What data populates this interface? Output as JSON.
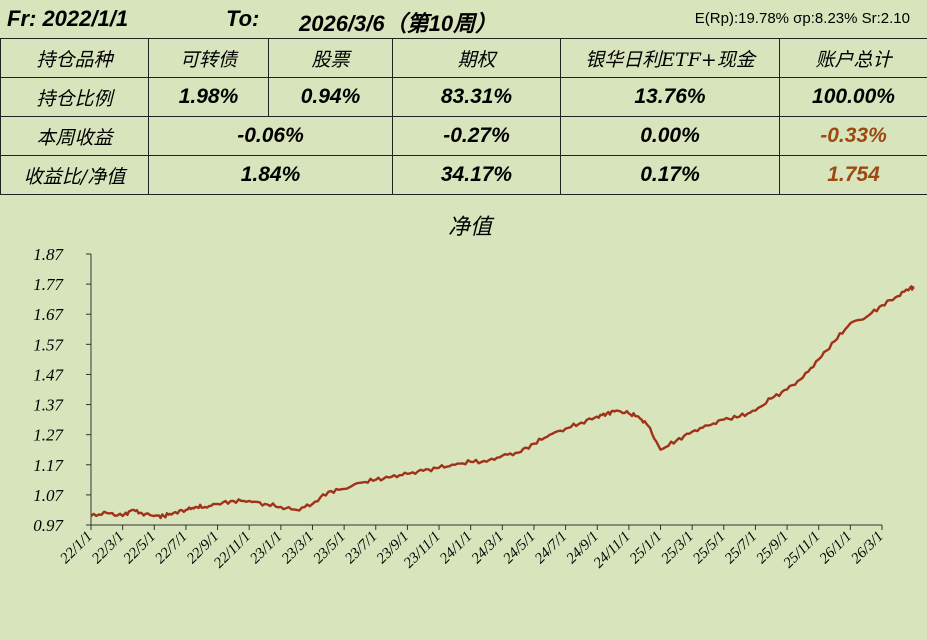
{
  "header": {
    "from_label": "Fr: 2022/1/1",
    "to_label": "To:",
    "to_value": "2026/3/6（第10周）",
    "stats": "E(Rp):19.78%  σp:8.23%  Sr:2.10"
  },
  "table": {
    "headers": [
      "持仓品种",
      "可转债",
      "股票",
      "期权",
      "银华日利ETF+现金",
      "账户总计"
    ],
    "row_position": {
      "label": "持仓比例",
      "values": [
        "1.98%",
        "0.94%",
        "83.31%",
        "13.76%",
        "100.00%"
      ]
    },
    "row_weekly": {
      "label": "本周收益",
      "values": [
        "-0.06%",
        "-0.27%",
        "0.00%",
        "-0.33%"
      ]
    },
    "row_ratio": {
      "label": "收益比/净值",
      "values": [
        "1.84%",
        "34.17%",
        "0.17%",
        "1.754"
      ]
    },
    "highlight_color": "#9c4a12"
  },
  "chart_data": {
    "type": "line",
    "title": "净值",
    "xlabel": "",
    "ylabel": "",
    "ylim": [
      0.97,
      1.87
    ],
    "yticks": [
      "1.87",
      "1.77",
      "1.67",
      "1.57",
      "1.47",
      "1.37",
      "1.27",
      "1.17",
      "1.07",
      "0.97"
    ],
    "x_tick_labels": [
      "22/1/1",
      "22/3/1",
      "22/5/1",
      "22/7/1",
      "22/9/1",
      "22/11/1",
      "23/1/1",
      "23/3/1",
      "23/5/1",
      "23/7/1",
      "23/9/1",
      "23/11/1",
      "24/1/1",
      "24/3/1",
      "24/5/1",
      "24/7/1",
      "24/9/1",
      "24/11/1",
      "25/1/1",
      "25/3/1",
      "25/5/1",
      "25/7/1",
      "25/9/1",
      "25/11/1",
      "26/1/1",
      "26/3/1"
    ],
    "line_color": "#a0321a",
    "grid": false,
    "series": [
      {
        "x": [
          0,
          0.5,
          1,
          1.3,
          1.6,
          2,
          2.3,
          2.6,
          3,
          3.3,
          3.6,
          4,
          4.5,
          5,
          5.5,
          6,
          6.5,
          7,
          7.5,
          8,
          8.5,
          9,
          9.5,
          10,
          10.5,
          11,
          11.5,
          12,
          12.5,
          13,
          13.5,
          14,
          14.5,
          15,
          15.5,
          16,
          16.3,
          16.6,
          17,
          17.3,
          17.6,
          18,
          18.5,
          19,
          19.5,
          20,
          20.5,
          21,
          21.5,
          22,
          22.5,
          23,
          23.5,
          24,
          24.5,
          25,
          25.5,
          25.9,
          26
        ],
        "y": [
          1.0,
          1.01,
          1.0,
          1.02,
          1.01,
          1.0,
          1.0,
          1.01,
          1.02,
          1.03,
          1.03,
          1.04,
          1.05,
          1.05,
          1.04,
          1.03,
          1.02,
          1.04,
          1.08,
          1.09,
          1.11,
          1.12,
          1.13,
          1.14,
          1.15,
          1.16,
          1.17,
          1.18,
          1.18,
          1.2,
          1.21,
          1.24,
          1.27,
          1.29,
          1.31,
          1.33,
          1.34,
          1.35,
          1.34,
          1.33,
          1.3,
          1.22,
          1.25,
          1.28,
          1.3,
          1.32,
          1.33,
          1.35,
          1.39,
          1.42,
          1.46,
          1.52,
          1.58,
          1.64,
          1.66,
          1.7,
          1.73,
          1.76,
          1.754
        ]
      }
    ]
  }
}
